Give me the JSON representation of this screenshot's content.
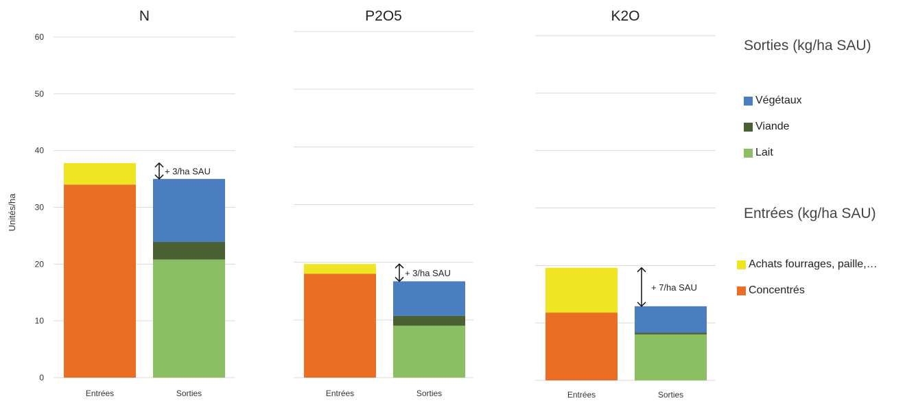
{
  "chart_data": {
    "type": "bar",
    "stacked": true,
    "ylabel": "Unités/ha",
    "ylim": [
      0,
      60
    ],
    "yticks": [
      0,
      10,
      20,
      30,
      40,
      50,
      60
    ],
    "grid": true,
    "legend_position": "right",
    "categories": [
      "Entrées",
      "Sorties"
    ],
    "series_colors": {
      "concentres": "#EA6F24",
      "achats": "#F0E523",
      "lait": "#8CBE64",
      "viande": "#4A6233",
      "vegetaux": "#4A7EC1"
    },
    "panels": [
      {
        "title": "N",
        "stacks": {
          "entrees": {
            "concentres": 34.0,
            "achats": 3.8
          },
          "sorties": {
            "lait": 20.8,
            "viande": 3.1,
            "vegetaux": 11.1
          }
        },
        "annotation": {
          "text": "+ 3/ha SAU",
          "from": 35.0,
          "to": 37.8
        }
      },
      {
        "title": "P2O5",
        "stacks": {
          "entrees": {
            "concentres": 18.0,
            "achats": 1.7
          },
          "sorties": {
            "lait": 9.0,
            "viande": 1.7,
            "vegetaux": 6.0
          }
        },
        "annotation": {
          "text": "+ 3/ha SAU",
          "from": 16.7,
          "to": 19.7
        }
      },
      {
        "title": "K2O",
        "stacks": {
          "entrees": {
            "concentres": 11.8,
            "achats": 7.8
          },
          "sorties": {
            "lait": 8.0,
            "viande": 0.3,
            "vegetaux": 4.6
          }
        },
        "annotation": {
          "text": "+ 7/ha SAU",
          "from": 12.9,
          "to": 19.6
        }
      }
    ]
  },
  "legend": {
    "sorties_title": "Sorties (kg/ha SAU)",
    "sorties_items": [
      {
        "key": "vegetaux",
        "label": "Végétaux"
      },
      {
        "key": "viande",
        "label": "Viande"
      },
      {
        "key": "lait",
        "label": "Lait"
      }
    ],
    "entrees_title": "Entrées (kg/ha SAU)",
    "entrees_items": [
      {
        "key": "achats",
        "label": "Achats fourrages, paille,…"
      },
      {
        "key": "concentres",
        "label": "Concentrés"
      }
    ]
  }
}
